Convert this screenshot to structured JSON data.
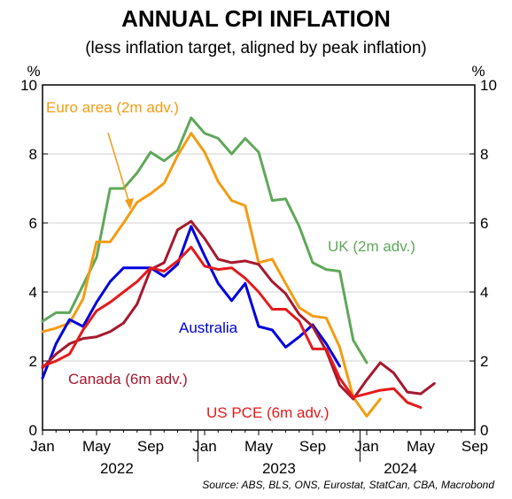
{
  "chart_data": {
    "type": "line",
    "title": "ANNUAL CPI INFLATION",
    "subtitle": "(less inflation target, aligned by peak inflation)",
    "y_unit_left": "%",
    "y_unit_right": "%",
    "ylim": [
      0,
      10
    ],
    "y_ticks": [
      0,
      2,
      4,
      6,
      8,
      10
    ],
    "x_start": "2022-01",
    "x_end": "2024-09",
    "x_tick_labels": [
      "Jan",
      "May",
      "Sep",
      "Jan",
      "May",
      "Sep",
      "Jan",
      "May",
      "Sep"
    ],
    "year_labels": [
      "2022",
      "2023",
      "2024"
    ],
    "grid": "horizontal",
    "source": "Source: ABS, BLS, ONS, Eurostat, StatCan, CBA, Macrobond",
    "series": [
      {
        "name": "UK (2m adv.)",
        "color": "#5fa85a",
        "x": [
          0,
          1,
          2,
          3,
          4,
          5,
          6,
          7,
          8,
          9,
          10,
          11,
          12,
          13,
          14,
          15,
          16,
          17,
          18,
          19,
          20,
          21,
          22,
          23,
          24,
          25
        ],
        "values": [
          3.15,
          3.4,
          3.4,
          4.2,
          5.0,
          7.0,
          7.0,
          7.45,
          8.05,
          7.8,
          8.1,
          9.05,
          8.6,
          8.45,
          8.0,
          8.45,
          8.05,
          6.65,
          6.7,
          5.9,
          4.85,
          4.65,
          4.6,
          2.6,
          1.95,
          null
        ]
      },
      {
        "name": "Euro area (2m adv.)",
        "color": "#f39c12",
        "x": [
          0,
          1,
          2,
          3,
          4,
          5,
          6,
          7,
          8,
          9,
          10,
          11,
          12,
          13,
          14,
          15,
          16,
          17,
          18,
          19,
          20,
          21,
          22,
          23,
          24,
          25
        ],
        "values": [
          2.85,
          2.95,
          3.1,
          3.8,
          5.45,
          5.45,
          6.0,
          6.6,
          6.85,
          7.15,
          7.95,
          8.6,
          8.05,
          7.2,
          6.65,
          6.5,
          4.85,
          4.95,
          4.25,
          3.55,
          3.3,
          3.25,
          2.4,
          0.95,
          0.4,
          0.9
        ]
      },
      {
        "name": "Australia",
        "color": "#0000dd",
        "x": [
          0,
          1,
          2,
          3,
          4,
          5,
          6,
          7,
          8,
          9,
          10,
          11,
          12,
          13,
          14,
          15,
          16,
          17,
          18,
          19,
          20,
          21,
          22
        ],
        "values": [
          1.5,
          2.5,
          3.2,
          3.0,
          3.7,
          4.3,
          4.7,
          4.7,
          4.7,
          4.45,
          4.8,
          5.9,
          5.05,
          4.25,
          3.75,
          4.25,
          3.0,
          2.9,
          2.4,
          2.7,
          3.05,
          2.5,
          1.85
        ]
      },
      {
        "name": "Canada (6m adv.)",
        "color": "#a6192e",
        "x": [
          0,
          1,
          2,
          3,
          4,
          5,
          6,
          7,
          8,
          9,
          10,
          11,
          12,
          13,
          14,
          15,
          16,
          17,
          18,
          19,
          20,
          21,
          22,
          23,
          24,
          25,
          26,
          27,
          28,
          29
        ],
        "values": [
          1.8,
          2.2,
          2.5,
          2.65,
          2.7,
          2.85,
          3.1,
          3.65,
          4.65,
          4.85,
          5.8,
          6.05,
          5.55,
          4.95,
          4.85,
          4.9,
          4.8,
          4.3,
          3.95,
          3.35,
          3.0,
          2.3,
          1.3,
          0.9,
          1.45,
          1.95,
          1.65,
          1.1,
          1.05,
          1.35
        ]
      },
      {
        "name": "US PCE (6m adv.)",
        "color": "#e41a1c",
        "x": [
          0,
          1,
          2,
          3,
          4,
          5,
          6,
          7,
          8,
          9,
          10,
          11,
          12,
          13,
          14,
          15,
          16,
          17,
          18,
          19,
          20,
          21,
          22,
          23,
          24,
          25,
          26,
          27,
          28
        ],
        "values": [
          1.85,
          2.0,
          2.2,
          2.9,
          3.45,
          3.7,
          4.0,
          4.3,
          4.7,
          4.6,
          4.9,
          5.3,
          4.75,
          4.65,
          4.7,
          4.4,
          4.0,
          3.5,
          3.5,
          3.15,
          2.35,
          2.35,
          1.5,
          0.95,
          1.05,
          1.15,
          1.2,
          0.8,
          0.65
        ]
      }
    ],
    "annotations": [
      {
        "text": "Euro area (2m adv.)",
        "series": "Euro area (2m adv.)"
      },
      {
        "text": "UK (2m adv.)",
        "series": "UK (2m adv.)"
      },
      {
        "text": "Australia",
        "series": "Australia"
      },
      {
        "text": "Canada (6m adv.)",
        "series": "Canada (6m adv.)"
      },
      {
        "text": "US PCE (6m adv.)",
        "series": "US PCE (6m adv.)"
      }
    ]
  }
}
